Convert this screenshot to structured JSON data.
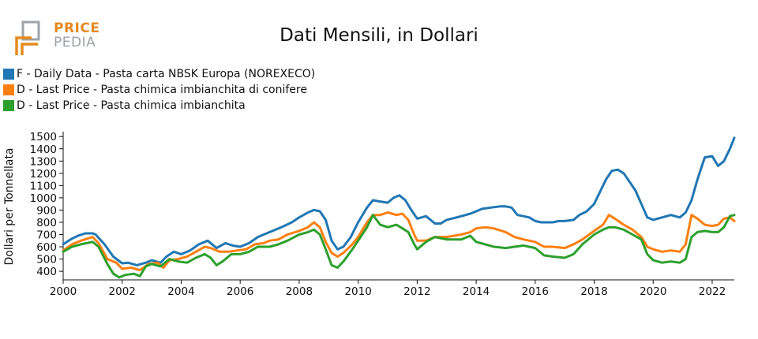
{
  "logo": {
    "word1": "PRICE",
    "word2": "PEDIA",
    "colors": {
      "orange": "#e58a1f",
      "gray": "#9ea3a8"
    },
    "icon": "pricepedia-logo-icon"
  },
  "chart_data": {
    "type": "line",
    "title": "Dati Mensili, in Dollari",
    "ylabel": "Dollari per Tonnellata",
    "xlabel": "",
    "xlim": [
      2000,
      2022.75
    ],
    "ylim": [
      330,
      1540
    ],
    "x_ticks": [
      "2000",
      "2002",
      "2004",
      "2006",
      "2008",
      "2010",
      "2012",
      "2014",
      "2016",
      "2018",
      "2020",
      "2022"
    ],
    "y_ticks": [
      "400",
      "500",
      "600",
      "700",
      "800",
      "900",
      "1000",
      "1100",
      "1200",
      "1300",
      "1400",
      "1500"
    ],
    "legend_position": "top-left",
    "grid": false,
    "series": [
      {
        "name": "F - Daily Data - Pasta carta NBSK Europa (NOREXECO)",
        "color": "#1f77b4",
        "points": [
          [
            2000,
            620
          ],
          [
            2000.25,
            660
          ],
          [
            2000.5,
            690
          ],
          [
            2000.75,
            710
          ],
          [
            2001,
            710
          ],
          [
            2001.1,
            700
          ],
          [
            2001.4,
            620
          ],
          [
            2001.7,
            520
          ],
          [
            2002,
            465
          ],
          [
            2002.2,
            470
          ],
          [
            2002.5,
            450
          ],
          [
            2002.8,
            470
          ],
          [
            2003,
            490
          ],
          [
            2003.3,
            470
          ],
          [
            2003.5,
            520
          ],
          [
            2003.75,
            560
          ],
          [
            2004,
            540
          ],
          [
            2004.3,
            570
          ],
          [
            2004.6,
            620
          ],
          [
            2004.9,
            650
          ],
          [
            2005.2,
            590
          ],
          [
            2005.5,
            630
          ],
          [
            2005.75,
            610
          ],
          [
            2006,
            600
          ],
          [
            2006.3,
            630
          ],
          [
            2006.6,
            680
          ],
          [
            2007,
            720
          ],
          [
            2007.4,
            760
          ],
          [
            2007.75,
            800
          ],
          [
            2008,
            840
          ],
          [
            2008.3,
            880
          ],
          [
            2008.5,
            900
          ],
          [
            2008.7,
            890
          ],
          [
            2008.9,
            820
          ],
          [
            2009.1,
            650
          ],
          [
            2009.3,
            580
          ],
          [
            2009.5,
            600
          ],
          [
            2009.75,
            680
          ],
          [
            2010,
            800
          ],
          [
            2010.3,
            920
          ],
          [
            2010.5,
            980
          ],
          [
            2010.75,
            970
          ],
          [
            2011,
            960
          ],
          [
            2011.2,
            1000
          ],
          [
            2011.4,
            1020
          ],
          [
            2011.6,
            980
          ],
          [
            2011.8,
            900
          ],
          [
            2012,
            830
          ],
          [
            2012.3,
            850
          ],
          [
            2012.6,
            790
          ],
          [
            2012.8,
            790
          ],
          [
            2013,
            820
          ],
          [
            2013.5,
            850
          ],
          [
            2013.8,
            870
          ],
          [
            2014,
            890
          ],
          [
            2014.2,
            910
          ],
          [
            2014.5,
            920
          ],
          [
            2014.8,
            930
          ],
          [
            2015,
            930
          ],
          [
            2015.2,
            920
          ],
          [
            2015.4,
            860
          ],
          [
            2015.6,
            850
          ],
          [
            2015.8,
            840
          ],
          [
            2016,
            810
          ],
          [
            2016.2,
            800
          ],
          [
            2016.4,
            800
          ],
          [
            2016.6,
            800
          ],
          [
            2016.8,
            810
          ],
          [
            2017,
            810
          ],
          [
            2017.3,
            820
          ],
          [
            2017.5,
            860
          ],
          [
            2017.75,
            890
          ],
          [
            2018,
            950
          ],
          [
            2018.2,
            1050
          ],
          [
            2018.4,
            1150
          ],
          [
            2018.6,
            1220
          ],
          [
            2018.8,
            1230
          ],
          [
            2019,
            1200
          ],
          [
            2019.2,
            1130
          ],
          [
            2019.4,
            1060
          ],
          [
            2019.6,
            950
          ],
          [
            2019.8,
            840
          ],
          [
            2020,
            820
          ],
          [
            2020.3,
            840
          ],
          [
            2020.6,
            860
          ],
          [
            2020.9,
            840
          ],
          [
            2021.1,
            880
          ],
          [
            2021.3,
            980
          ],
          [
            2021.5,
            1150
          ],
          [
            2021.75,
            1330
          ],
          [
            2022,
            1340
          ],
          [
            2022.2,
            1260
          ],
          [
            2022.4,
            1300
          ],
          [
            2022.6,
            1400
          ],
          [
            2022.75,
            1490
          ]
        ]
      },
      {
        "name": "D - Last Price - Pasta chimica imbianchita di conifere",
        "color": "#ff7f0e",
        "points": [
          [
            2000,
            570
          ],
          [
            2000.3,
            620
          ],
          [
            2000.6,
            650
          ],
          [
            2001,
            680
          ],
          [
            2001.2,
            630
          ],
          [
            2001.5,
            500
          ],
          [
            2001.8,
            470
          ],
          [
            2002,
            420
          ],
          [
            2002.3,
            430
          ],
          [
            2002.6,
            410
          ],
          [
            2002.9,
            460
          ],
          [
            2003.2,
            470
          ],
          [
            2003.4,
            430
          ],
          [
            2003.6,
            490
          ],
          [
            2003.9,
            500
          ],
          [
            2004.2,
            520
          ],
          [
            2004.5,
            560
          ],
          [
            2004.8,
            600
          ],
          [
            2005,
            590
          ],
          [
            2005.3,
            560
          ],
          [
            2005.6,
            560
          ],
          [
            2005.9,
            570
          ],
          [
            2006.2,
            580
          ],
          [
            2006.5,
            620
          ],
          [
            2006.8,
            630
          ],
          [
            2007,
            650
          ],
          [
            2007.3,
            660
          ],
          [
            2007.6,
            700
          ],
          [
            2008,
            730
          ],
          [
            2008.3,
            760
          ],
          [
            2008.5,
            800
          ],
          [
            2008.7,
            760
          ],
          [
            2008.9,
            640
          ],
          [
            2009.1,
            550
          ],
          [
            2009.3,
            520
          ],
          [
            2009.5,
            550
          ],
          [
            2009.8,
            620
          ],
          [
            2010,
            680
          ],
          [
            2010.3,
            800
          ],
          [
            2010.5,
            860
          ],
          [
            2010.75,
            860
          ],
          [
            2011,
            880
          ],
          [
            2011.3,
            860
          ],
          [
            2011.5,
            870
          ],
          [
            2011.7,
            820
          ],
          [
            2011.9,
            700
          ],
          [
            2012,
            650
          ],
          [
            2012.3,
            650
          ],
          [
            2012.6,
            680
          ],
          [
            2013,
            680
          ],
          [
            2013.5,
            700
          ],
          [
            2013.8,
            720
          ],
          [
            2014,
            750
          ],
          [
            2014.3,
            760
          ],
          [
            2014.6,
            750
          ],
          [
            2015,
            720
          ],
          [
            2015.3,
            680
          ],
          [
            2015.6,
            660
          ],
          [
            2016,
            640
          ],
          [
            2016.3,
            600
          ],
          [
            2016.6,
            600
          ],
          [
            2017,
            590
          ],
          [
            2017.3,
            620
          ],
          [
            2017.6,
            660
          ],
          [
            2018,
            730
          ],
          [
            2018.3,
            780
          ],
          [
            2018.5,
            860
          ],
          [
            2018.7,
            830
          ],
          [
            2019,
            780
          ],
          [
            2019.3,
            740
          ],
          [
            2019.6,
            680
          ],
          [
            2019.8,
            600
          ],
          [
            2020,
            580
          ],
          [
            2020.3,
            560
          ],
          [
            2020.6,
            570
          ],
          [
            2020.9,
            560
          ],
          [
            2021.1,
            620
          ],
          [
            2021.3,
            860
          ],
          [
            2021.5,
            830
          ],
          [
            2021.75,
            780
          ],
          [
            2022,
            770
          ],
          [
            2022.2,
            780
          ],
          [
            2022.4,
            830
          ],
          [
            2022.6,
            840
          ],
          [
            2022.75,
            810
          ]
        ]
      },
      {
        "name": "D - Last Price - Pasta chimica imbianchita",
        "color": "#2ca02c",
        "points": [
          [
            2000,
            560
          ],
          [
            2000.3,
            600
          ],
          [
            2000.6,
            620
          ],
          [
            2001,
            640
          ],
          [
            2001.2,
            600
          ],
          [
            2001.5,
            460
          ],
          [
            2001.7,
            380
          ],
          [
            2001.9,
            350
          ],
          [
            2002.1,
            370
          ],
          [
            2002.4,
            380
          ],
          [
            2002.6,
            360
          ],
          [
            2002.8,
            440
          ],
          [
            2003,
            460
          ],
          [
            2003.3,
            440
          ],
          [
            2003.6,
            500
          ],
          [
            2003.9,
            480
          ],
          [
            2004.2,
            470
          ],
          [
            2004.5,
            510
          ],
          [
            2004.8,
            540
          ],
          [
            2005,
            510
          ],
          [
            2005.2,
            450
          ],
          [
            2005.4,
            480
          ],
          [
            2005.7,
            540
          ],
          [
            2006,
            540
          ],
          [
            2006.3,
            560
          ],
          [
            2006.6,
            600
          ],
          [
            2007,
            600
          ],
          [
            2007.3,
            620
          ],
          [
            2007.6,
            650
          ],
          [
            2008,
            700
          ],
          [
            2008.3,
            720
          ],
          [
            2008.5,
            740
          ],
          [
            2008.7,
            700
          ],
          [
            2008.9,
            580
          ],
          [
            2009.1,
            450
          ],
          [
            2009.3,
            430
          ],
          [
            2009.5,
            480
          ],
          [
            2009.8,
            580
          ],
          [
            2010,
            650
          ],
          [
            2010.3,
            760
          ],
          [
            2010.5,
            860
          ],
          [
            2010.75,
            780
          ],
          [
            2011,
            760
          ],
          [
            2011.3,
            780
          ],
          [
            2011.5,
            750
          ],
          [
            2011.7,
            720
          ],
          [
            2011.9,
            620
          ],
          [
            2012,
            580
          ],
          [
            2012.3,
            640
          ],
          [
            2012.6,
            680
          ],
          [
            2013,
            660
          ],
          [
            2013.5,
            660
          ],
          [
            2013.8,
            690
          ],
          [
            2014,
            640
          ],
          [
            2014.3,
            620
          ],
          [
            2014.6,
            600
          ],
          [
            2015,
            590
          ],
          [
            2015.3,
            600
          ],
          [
            2015.6,
            610
          ],
          [
            2016,
            590
          ],
          [
            2016.3,
            530
          ],
          [
            2016.6,
            520
          ],
          [
            2017,
            510
          ],
          [
            2017.3,
            540
          ],
          [
            2017.6,
            620
          ],
          [
            2018,
            700
          ],
          [
            2018.3,
            740
          ],
          [
            2018.5,
            760
          ],
          [
            2018.7,
            760
          ],
          [
            2019,
            740
          ],
          [
            2019.3,
            700
          ],
          [
            2019.6,
            660
          ],
          [
            2019.8,
            540
          ],
          [
            2020,
            490
          ],
          [
            2020.3,
            470
          ],
          [
            2020.6,
            480
          ],
          [
            2020.9,
            470
          ],
          [
            2021.1,
            500
          ],
          [
            2021.3,
            680
          ],
          [
            2021.5,
            720
          ],
          [
            2021.75,
            730
          ],
          [
            2022,
            720
          ],
          [
            2022.2,
            720
          ],
          [
            2022.4,
            760
          ],
          [
            2022.6,
            850
          ],
          [
            2022.75,
            860
          ]
        ]
      }
    ]
  }
}
